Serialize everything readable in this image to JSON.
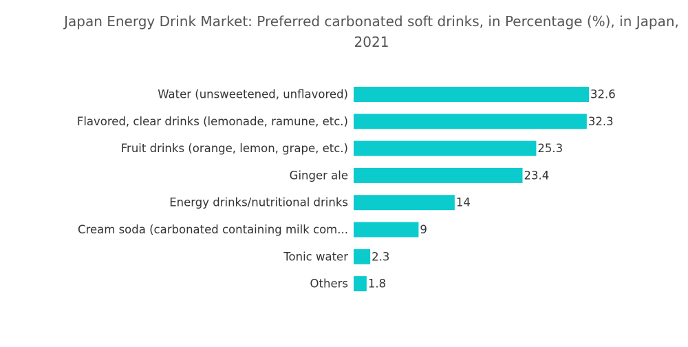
{
  "chart_data": {
    "type": "bar",
    "orientation": "horizontal",
    "title": "Japan Energy Drink Market: Preferred carbonated soft drinks, in Percentage (%), in Japan, 2021",
    "categories": [
      "Water (unsweetened, unflavored)",
      "Flavored, clear drinks (lemonade, ramune, etc.)",
      "Fruit drinks (orange, lemon, grape, etc.)",
      "Ginger ale",
      "Energy drinks/nutritional drinks",
      "Cream soda (carbonated containing milk com...",
      "Tonic water",
      "Others"
    ],
    "values": [
      32.6,
      32.3,
      25.3,
      23.4,
      14,
      9,
      2.3,
      1.8
    ],
    "color": "#0ccbcd"
  }
}
